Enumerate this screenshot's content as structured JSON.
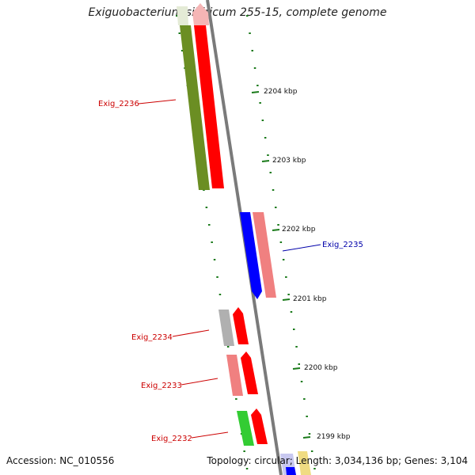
{
  "title": "Exiguobacterium sibiricum 255-15, complete genome",
  "accession": "Accession: NC_010556",
  "summary": "Topology: circular; Length: 3,034,136 bp; Genes: 3,104",
  "ruler_labels": [
    "2204 kbp",
    "2203 kbp",
    "2202 kbp",
    "2201 kbp",
    "2200 kbp",
    "2199 kbp"
  ],
  "gene_labels": {
    "exig_2236": "Exig_2236",
    "exig_2235": "Exig_2235",
    "exig_2234": "Exig_2234",
    "exig_2233": "Exig_2233",
    "exig_2232": "Exig_2232"
  },
  "colors": {
    "backbone": "#7a7a7a",
    "gene_red": "#ff0000",
    "gene_pink": "#f08080",
    "gene_blue": "#0000ff",
    "gene_olive": "#6b8e23",
    "gene_green": "#33cc33",
    "gene_gray": "#b0b0b0",
    "tick_green": "#1a7a1a",
    "label_red": "#cc0000",
    "label_blue": "#0000aa"
  }
}
